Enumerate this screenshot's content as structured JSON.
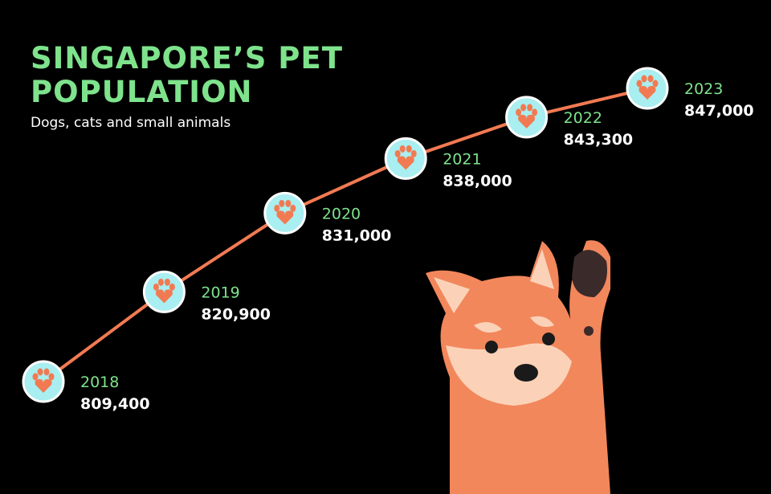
{
  "chart_data": {
    "type": "line",
    "title": "SINGAPORE’S PET POPULATION",
    "subtitle": "Dogs, cats and small animals",
    "categories": [
      "2018",
      "2019",
      "2020",
      "2021",
      "2022",
      "2023"
    ],
    "values": [
      809400,
      820900,
      831000,
      838000,
      843300,
      847000
    ],
    "value_labels": [
      "809,400",
      "820,900",
      "831,000",
      "838,000",
      "843,300",
      "847,000"
    ],
    "color": "#f27a52"
  }
}
